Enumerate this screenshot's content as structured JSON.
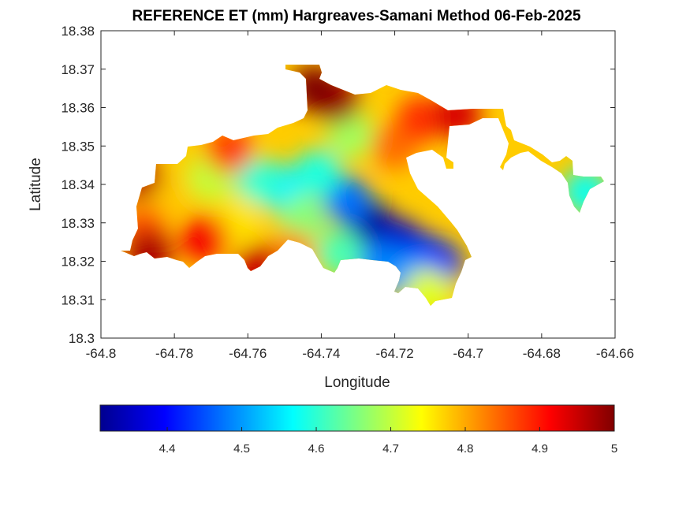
{
  "chart_data": {
    "type": "heatmap",
    "title": "REFERENCE ET (mm) Hargreaves-Samani Method  06-Feb-2025",
    "xlabel": "Longitude",
    "ylabel": "Latitude",
    "xlim": [
      -64.8,
      -64.66
    ],
    "ylim": [
      18.3,
      18.38
    ],
    "xticks": [
      -64.8,
      -64.78,
      -64.76,
      -64.74,
      -64.72,
      -64.7,
      -64.68,
      -64.66
    ],
    "xtick_labels": [
      "-64.8",
      "-64.78",
      "-64.76",
      "-64.74",
      "-64.72",
      "-64.7",
      "-64.68",
      "-64.66"
    ],
    "yticks": [
      18.3,
      18.31,
      18.32,
      18.33,
      18.34,
      18.35,
      18.36,
      18.37,
      18.38
    ],
    "ytick_labels": [
      "18.3",
      "18.31",
      "18.32",
      "18.33",
      "18.34",
      "18.35",
      "18.36",
      "18.37",
      "18.38"
    ],
    "colormap": "jet",
    "colorbar": {
      "placement": "bottom",
      "clim": [
        4.31,
        5.0
      ],
      "ticks": [
        4.4,
        4.5,
        4.6,
        4.7,
        4.8,
        4.9,
        5.0
      ],
      "tick_labels": [
        "4.4",
        "4.5",
        "4.6",
        "4.7",
        "4.8",
        "4.9",
        "5"
      ]
    },
    "grid": false,
    "regions": [
      {
        "lon": -64.727,
        "lat": 18.33,
        "value": 4.33
      },
      {
        "lon": -64.719,
        "lat": 18.325,
        "value": 4.36
      },
      {
        "lon": -64.712,
        "lat": 18.321,
        "value": 4.4
      },
      {
        "lon": -64.708,
        "lat": 18.319,
        "value": 4.42
      },
      {
        "lon": -64.733,
        "lat": 18.336,
        "value": 4.47
      },
      {
        "lon": -64.724,
        "lat": 18.319,
        "value": 4.48
      },
      {
        "lon": -64.716,
        "lat": 18.316,
        "value": 4.5
      },
      {
        "lon": -64.751,
        "lat": 18.339,
        "value": 4.56
      },
      {
        "lon": -64.741,
        "lat": 18.343,
        "value": 4.59
      },
      {
        "lon": -64.757,
        "lat": 18.341,
        "value": 4.6
      },
      {
        "lon": -64.735,
        "lat": 18.322,
        "value": 4.62
      },
      {
        "lon": -64.668,
        "lat": 18.338,
        "value": 4.58
      },
      {
        "lon": -64.745,
        "lat": 18.331,
        "value": 4.66
      },
      {
        "lon": -64.732,
        "lat": 18.353,
        "value": 4.68
      },
      {
        "lon": -64.77,
        "lat": 18.342,
        "value": 4.7
      },
      {
        "lon": -64.711,
        "lat": 18.312,
        "value": 4.72
      },
      {
        "lon": -64.763,
        "lat": 18.331,
        "value": 4.76
      },
      {
        "lon": -64.783,
        "lat": 18.337,
        "value": 4.78
      },
      {
        "lon": -64.748,
        "lat": 18.322,
        "value": 4.82
      },
      {
        "lon": -64.72,
        "lat": 18.35,
        "value": 4.84
      },
      {
        "lon": -64.788,
        "lat": 18.328,
        "value": 4.86
      },
      {
        "lon": -64.713,
        "lat": 18.357,
        "value": 4.88
      },
      {
        "lon": -64.765,
        "lat": 18.349,
        "value": 4.87
      },
      {
        "lon": -64.772,
        "lat": 18.326,
        "value": 4.92
      },
      {
        "lon": -64.757,
        "lat": 18.318,
        "value": 4.95
      },
      {
        "lon": -64.703,
        "lat": 18.358,
        "value": 4.94
      },
      {
        "lon": -64.79,
        "lat": 18.342,
        "value": 4.96
      },
      {
        "lon": -64.787,
        "lat": 18.322,
        "value": 4.97
      },
      {
        "lon": -64.736,
        "lat": 18.362,
        "value": 4.98
      },
      {
        "lon": -64.742,
        "lat": 18.365,
        "value": 5.0
      }
    ]
  }
}
